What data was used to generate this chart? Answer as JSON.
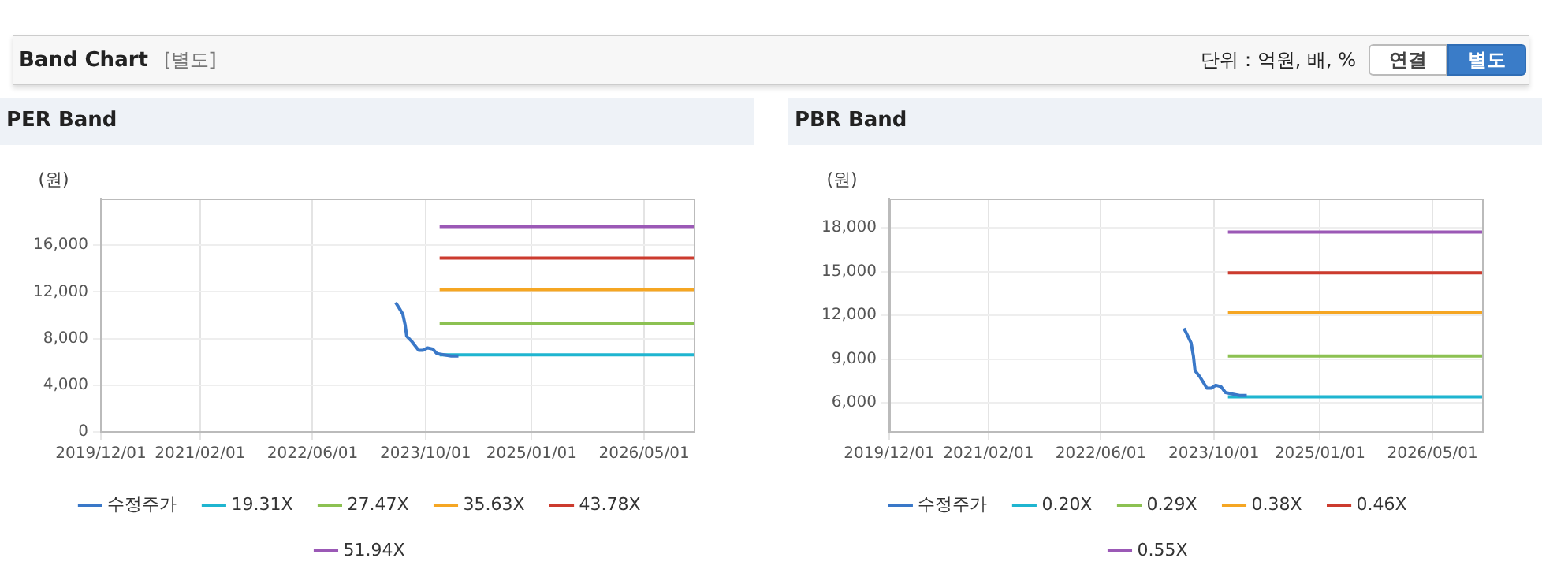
{
  "chart_data": [
    {
      "type": "other",
      "title": "Band Chart",
      "subtitle": "[별도]",
      "annotations": [
        "단위 : 억원, 배, %",
        "연결",
        "별도"
      ]
    },
    {
      "type": "line",
      "title": "PER Band",
      "ylabel": "(원)",
      "xlim": [
        "2019-12-01",
        "2026-12-01"
      ],
      "ylim": [
        0,
        20000
      ],
      "xticks": [
        {
          "value": "2019-12-01",
          "label": "2019/12/01"
        },
        {
          "value": "2021-02-01",
          "label": "2021/02/01"
        },
        {
          "value": "2022-06-01",
          "label": "2022/06/01"
        },
        {
          "value": "2023-10-01",
          "label": "2023/10/01"
        },
        {
          "value": "2025-01-01",
          "label": "2025/01/01"
        },
        {
          "value": "2026-05-01",
          "label": "2026/05/01"
        }
      ],
      "yticks": [
        0,
        {
          "value": 4000,
          "label": "4,000"
        },
        {
          "value": 8000,
          "label": "8,000"
        },
        {
          "value": 12000,
          "label": "12,000"
        },
        {
          "value": 16000,
          "label": "16,000"
        }
      ],
      "grid": true,
      "legend": "bottom",
      "marker": "none",
      "line_style": "solid",
      "series": [
        {
          "name": "수정주가",
          "color": "#3a78c8",
          "x": [
            "2023-05-25",
            "2023-06-10",
            "2023-06-25",
            "2023-07-05",
            "2023-07-12",
            "2023-08-01",
            "2023-09-01",
            "2023-09-20",
            "2023-10-10",
            "2023-11-01",
            "2023-11-20",
            "2023-12-20",
            "2024-01-20",
            "2024-02-20"
          ],
          "values": [
            11100,
            10600,
            10100,
            9200,
            8200,
            7800,
            7000,
            7000,
            7200,
            7100,
            6700,
            6600,
            6500,
            6500
          ]
        },
        {
          "name": "19.31X",
          "color": "#1fb5d0",
          "x": [
            "2023-12-01",
            "2026-12-01"
          ],
          "values": [
            6600,
            6600
          ]
        },
        {
          "name": "27.47X",
          "color": "#8cc152",
          "x": [
            "2023-12-01",
            "2026-12-01"
          ],
          "values": [
            9300,
            9300
          ]
        },
        {
          "name": "35.63X",
          "color": "#f5a623",
          "x": [
            "2023-12-01",
            "2026-12-01"
          ],
          "values": [
            12200,
            12200
          ]
        },
        {
          "name": "43.78X",
          "color": "#cc3b2e",
          "x": [
            "2023-12-01",
            "2026-12-01"
          ],
          "values": [
            14900,
            14900
          ]
        },
        {
          "name": "51.94X",
          "color": "#9b59b6",
          "x": [
            "2023-12-01",
            "2026-12-01"
          ],
          "values": [
            17600,
            17600
          ]
        }
      ]
    },
    {
      "type": "line",
      "title": "PBR Band",
      "ylabel": "(원)",
      "xlim": [
        "2019-12-01",
        "2026-12-01"
      ],
      "ylim": [
        4000,
        20000
      ],
      "xticks": [
        {
          "value": "2019-12-01",
          "label": "2019/12/01"
        },
        {
          "value": "2021-02-01",
          "label": "2021/02/01"
        },
        {
          "value": "2022-06-01",
          "label": "2022/06/01"
        },
        {
          "value": "2023-10-01",
          "label": "2023/10/01"
        },
        {
          "value": "2025-01-01",
          "label": "2025/01/01"
        },
        {
          "value": "2026-05-01",
          "label": "2026/05/01"
        }
      ],
      "yticks": [
        {
          "value": 6000,
          "label": "6,000"
        },
        {
          "value": 9000,
          "label": "9,000"
        },
        {
          "value": 12000,
          "label": "12,000"
        },
        {
          "value": 15000,
          "label": "15,000"
        },
        {
          "value": 18000,
          "label": "18,000"
        }
      ],
      "grid": true,
      "legend": "bottom",
      "marker": "none",
      "line_style": "solid",
      "series": [
        {
          "name": "수정주가",
          "color": "#3a78c8",
          "x": [
            "2023-05-25",
            "2023-06-10",
            "2023-06-25",
            "2023-07-05",
            "2023-07-12",
            "2023-08-01",
            "2023-09-01",
            "2023-09-20",
            "2023-10-10",
            "2023-11-01",
            "2023-11-20",
            "2023-12-20",
            "2024-01-20",
            "2024-02-20"
          ],
          "values": [
            11100,
            10600,
            10100,
            9200,
            8200,
            7800,
            7000,
            7000,
            7200,
            7100,
            6700,
            6600,
            6500,
            6500
          ]
        },
        {
          "name": "0.20X",
          "color": "#1fb5d0",
          "x": [
            "2023-12-01",
            "2026-12-01"
          ],
          "values": [
            6400,
            6400
          ]
        },
        {
          "name": "0.29X",
          "color": "#8cc152",
          "x": [
            "2023-12-01",
            "2026-12-01"
          ],
          "values": [
            9200,
            9200
          ]
        },
        {
          "name": "0.38X",
          "color": "#f5a623",
          "x": [
            "2023-12-01",
            "2026-12-01"
          ],
          "values": [
            12200,
            12200
          ]
        },
        {
          "name": "0.46X",
          "color": "#cc3b2e",
          "x": [
            "2023-12-01",
            "2026-12-01"
          ],
          "values": [
            14900,
            14900
          ]
        },
        {
          "name": "0.55X",
          "color": "#9b59b6",
          "x": [
            "2023-12-01",
            "2026-12-01"
          ],
          "values": [
            17700,
            17700
          ]
        }
      ]
    }
  ]
}
